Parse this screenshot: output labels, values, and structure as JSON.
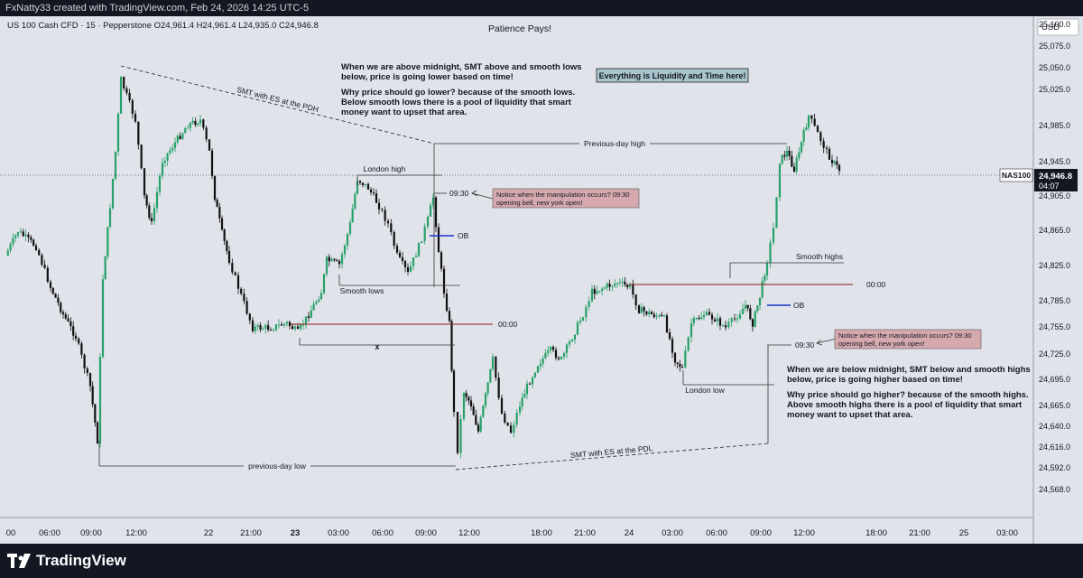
{
  "header": {
    "credit": "FxNatty33 created with TradingView.com, Feb 24, 2026 14:25 UTC-5"
  },
  "chart_title": "Patience Pays!",
  "chart_data": {
    "type": "candlestick",
    "symbol_line": "US 100 Cash CFD · 15 · Pepperstone  O24,961.4  H24,961.4  L24,935.0  C24,946.8",
    "currency": "USD",
    "ylim": [
      24550,
      25120
    ],
    "y_ticks": [
      25100,
      25075,
      25050,
      25025,
      24985,
      24945,
      24905,
      24865,
      24825,
      24785,
      24755,
      24725,
      24695,
      24665,
      24640,
      24616,
      24592,
      24568
    ],
    "y_tick_labels": [
      "25,100.0",
      "25,075.0",
      "25,050.0",
      "25,025.0",
      "24,985.0",
      "24,945.0",
      "24,905.0",
      "24,865.0",
      "24,825.0",
      "24,785.0",
      "24,755.0",
      "24,725.0",
      "24,695.0",
      "24,665.0",
      "24,640.0",
      "24,616.0",
      "24,592.0",
      "24,568.0"
    ],
    "x_ticks": [
      "00",
      "06:00",
      "09:00",
      "12:00",
      "22",
      "21:00",
      "23",
      "03:00",
      "06:00",
      "09:00",
      "12:00",
      "18:00",
      "21:00",
      "24",
      "03:00",
      "06:00",
      "09:00",
      "12:00",
      "18:00",
      "21:00",
      "25",
      "03:00"
    ],
    "x_ticks_bold": [
      "23"
    ],
    "last_price": {
      "symbol": "NAS100",
      "value": 24946.8,
      "label": "24,946.8",
      "countdown": "04:07"
    },
    "colors": {
      "up": "#26a169",
      "down": "#111111",
      "annotation_bg": "#d6a9ae",
      "callout_bg": "#a9c4cc",
      "ob_line": "#1732c8",
      "midnight_line": "#8b1a1a"
    },
    "levels": [
      {
        "label": "Previous-day high",
        "price": 24985
      },
      {
        "label": "London high",
        "price": 24943
      },
      {
        "label": "previous-day low",
        "price": 24612
      },
      {
        "label": "Smooth lows",
        "price": 24820
      },
      {
        "label": "Smooth highs",
        "price": 24852
      },
      {
        "label": "London low",
        "price": 24704
      },
      {
        "label": "00:00",
        "price": 24777
      },
      {
        "label": "00:00",
        "price": 24822
      },
      {
        "label": "OB",
        "price": 24872
      },
      {
        "label": "OB",
        "price": 24800
      },
      {
        "label": "09:30",
        "price": 24915
      },
      {
        "label": "09:30",
        "price": 24758
      },
      {
        "label": "x",
        "price": 24756
      }
    ],
    "annotations": [
      {
        "text": "SMT with ES at the PDH"
      },
      {
        "text": "SMT with ES at the PDL"
      }
    ]
  },
  "notes": {
    "top_lines": [
      "When we are above midnight, SMT above and smooth lows",
      "below, price is going lower based on time!",
      "",
      "Why price should go lower? because of the smooth lows.",
      "Below smooth lows there is a pool of liquidity that smart",
      "money want to upset that area."
    ],
    "bottom_lines": [
      "When we are below midnight, SMT below and smooth highs",
      "below, price is going higher based on time!",
      "",
      "Why price should go higher? because of the smooth highs.",
      "Above smooth highs there is a pool of liquidity that smart",
      "money want to upset that area."
    ],
    "callout": "Everything is Liquidity and Time here!",
    "manipulation_1": [
      "Notice when the manipulation occurs? 09:30",
      "opening bell, new york open!"
    ],
    "manipulation_2": [
      "Notice when the manipulation occurs? 09:30",
      "opening bell, new york open!"
    ]
  },
  "footer": {
    "brand": "TradingView"
  }
}
